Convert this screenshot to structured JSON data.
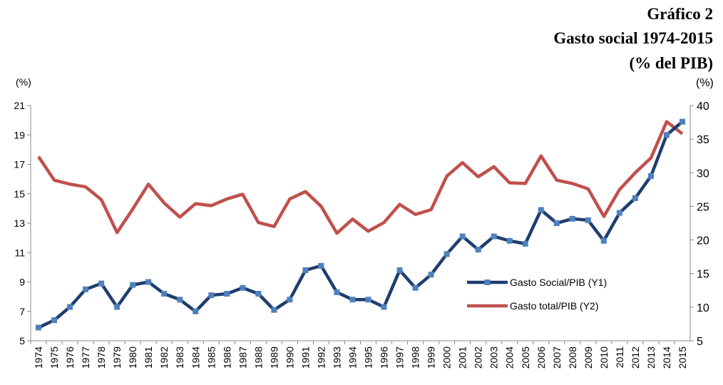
{
  "chart_data": {
    "type": "line",
    "title": "Gráfico 2",
    "subtitle": [
      "Gasto social 1974-2015",
      "(% del PIB)"
    ],
    "ylabel": "(%)",
    "y2label": "(%)",
    "categories": [
      "1974",
      "1975",
      "1976",
      "1977",
      "1978",
      "1979",
      "1980",
      "1981",
      "1982",
      "1983",
      "1984",
      "1985",
      "1986",
      "1987",
      "1988",
      "1989",
      "1990",
      "1991",
      "1992",
      "1993",
      "1994",
      "1995",
      "1996",
      "1997",
      "1998",
      "1999",
      "2000",
      "2001",
      "2002",
      "2003",
      "2004",
      "2005",
      "2006",
      "2007",
      "2008",
      "2009",
      "2010",
      "2011",
      "2012",
      "2013",
      "2014",
      "2015"
    ],
    "series": [
      {
        "name": "Gasto Social/PIB (Y1)",
        "color": "#1f3d6e",
        "marker_color": "#4f81bd",
        "axis": "y",
        "values": [
          5.9,
          6.4,
          7.3,
          8.5,
          8.9,
          7.3,
          8.8,
          9.0,
          8.2,
          7.8,
          7.0,
          8.1,
          8.2,
          8.6,
          8.2,
          7.1,
          7.8,
          9.8,
          10.1,
          8.3,
          7.8,
          7.8,
          7.3,
          9.8,
          8.6,
          9.5,
          10.9,
          12.1,
          11.2,
          12.1,
          11.8,
          11.6,
          13.9,
          13.0,
          13.3,
          13.2,
          11.8,
          13.7,
          14.7,
          16.2,
          19.0,
          19.9
        ]
      },
      {
        "name": "Gasto total/PIB (Y2)",
        "color": "#c0504d",
        "axis": "y2",
        "values": [
          32.4,
          28.9,
          28.3,
          27.9,
          26.0,
          21.1,
          24.6,
          28.3,
          25.5,
          23.4,
          25.4,
          25.1,
          26.1,
          26.8,
          22.6,
          22.0,
          26.1,
          27.2,
          25.0,
          21.0,
          23.1,
          21.3,
          22.6,
          25.3,
          23.8,
          24.5,
          29.5,
          31.5,
          29.4,
          30.9,
          28.5,
          28.4,
          32.5,
          28.9,
          28.4,
          27.6,
          23.5,
          27.5,
          30.0,
          32.2,
          37.6,
          35.8
        ]
      }
    ],
    "ylim": [
      5,
      21
    ],
    "yticks": [
      5,
      7,
      9,
      11,
      13,
      15,
      17,
      19,
      21
    ],
    "y2lim": [
      5,
      40
    ],
    "y2ticks": [
      5,
      10,
      15,
      20,
      25,
      30,
      35,
      40
    ]
  }
}
